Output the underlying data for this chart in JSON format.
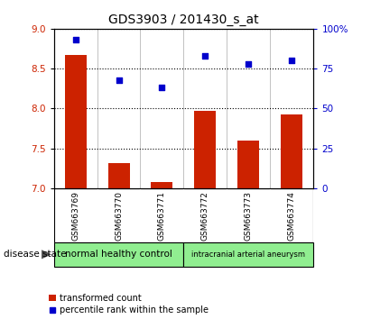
{
  "title": "GDS3903 / 201430_s_at",
  "categories": [
    "GSM663769",
    "GSM663770",
    "GSM663771",
    "GSM663772",
    "GSM663773",
    "GSM663774"
  ],
  "bar_values": [
    8.67,
    7.32,
    7.08,
    7.97,
    7.6,
    7.92
  ],
  "scatter_values": [
    93,
    68,
    63,
    83,
    78,
    80
  ],
  "ylim_left": [
    7,
    9
  ],
  "ylim_right": [
    0,
    100
  ],
  "yticks_left": [
    7,
    7.5,
    8,
    8.5,
    9
  ],
  "yticks_right": [
    0,
    25,
    50,
    75,
    100
  ],
  "ytick_right_labels": [
    "0",
    "25",
    "50",
    "75",
    "100%"
  ],
  "bar_color": "#cc2200",
  "scatter_color": "#0000cc",
  "group1_label": "normal healthy control",
  "group2_label": "intracranial arterial aneurysm",
  "group1_indices": [
    0,
    1,
    2
  ],
  "group2_indices": [
    3,
    4,
    5
  ],
  "group1_color": "#90ee90",
  "group2_color": "#90ee90",
  "disease_state_label": "disease state",
  "legend_bar_label": "transformed count",
  "legend_scatter_label": "percentile rank within the sample",
  "background_color": "#ffffff",
  "plot_bg_color": "#ffffff",
  "tick_label_area_color": "#c8c8c8",
  "dotted_grid_color": "#000000",
  "title_fontsize": 10,
  "bar_width": 0.5
}
